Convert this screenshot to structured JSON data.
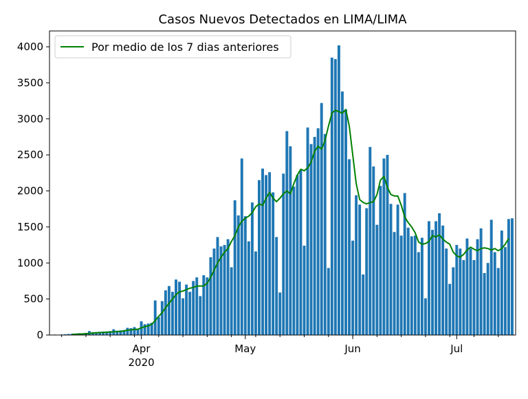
{
  "chart_data": {
    "type": "bar",
    "title": "Casos Nuevos Detectados en LIMA/LIMA",
    "xlabel": "",
    "ylabel": "",
    "x_start_date": "2020-03-06",
    "ylim": [
      0,
      4220
    ],
    "yticks": [
      0,
      500,
      1000,
      1500,
      2000,
      2500,
      3000,
      3500,
      4000
    ],
    "xticks": [
      {
        "date": "2020-04-01",
        "label": "Apr",
        "sublabel": "2020"
      },
      {
        "date": "2020-05-01",
        "label": "May",
        "sublabel": ""
      },
      {
        "date": "2020-06-01",
        "label": "Jun",
        "sublabel": ""
      },
      {
        "date": "2020-07-01",
        "label": "Jul",
        "sublabel": ""
      }
    ],
    "grid": false,
    "legend_position": "top-left",
    "bar_color": "#1f77b4",
    "line_color": "#008000",
    "series": [
      {
        "kind": "bar",
        "values": [
          4,
          6,
          3,
          8,
          10,
          15,
          18,
          20,
          25,
          22,
          30,
          55,
          40,
          42,
          45,
          48,
          50,
          55,
          80,
          60,
          65,
          70,
          100,
          95,
          110,
          90,
          190,
          150,
          160,
          170,
          480,
          250,
          470,
          620,
          680,
          600,
          770,
          740,
          510,
          700,
          600,
          750,
          800,
          540,
          830,
          800,
          1080,
          1200,
          1360,
          1230,
          1250,
          1330,
          940,
          1870,
          1660,
          2450,
          1650,
          1300,
          1840,
          1160,
          2150,
          2310,
          2220,
          2260,
          1980,
          1360,
          590,
          2240,
          2830,
          2620,
          2060,
          2220,
          2290,
          1240,
          2880,
          2650,
          2750,
          2870,
          3220,
          2790,
          930,
          3850,
          3830,
          4020,
          3380,
          3130,
          2440,
          1310,
          1940,
          1810,
          840,
          1760,
          2610,
          2340,
          1530,
          2070,
          2450,
          2500,
          1820,
          1430,
          1810,
          1380,
          1970,
          1490,
          1370,
          1380,
          1150,
          1350,
          510,
          1580,
          1460,
          1580,
          1690,
          1520,
          1200,
          710,
          940,
          1250,
          1200,
          1040,
          1340,
          1200,
          1040,
          1330,
          1480,
          860,
          1000,
          1600,
          1150,
          930,
          1450,
          1220,
          1610,
          1620
        ]
      },
      {
        "kind": "line",
        "name": "Por medio de los 7 dias anteriores",
        "values": [
          null,
          null,
          null,
          null,
          null,
          null,
          9,
          11,
          13,
          15,
          18,
          22,
          28,
          30,
          33,
          36,
          38,
          42,
          44,
          48,
          50,
          56,
          68,
          72,
          78,
          80,
          100,
          118,
          125,
          150,
          200,
          260,
          310,
          380,
          440,
          500,
          560,
          600,
          610,
          630,
          650,
          660,
          680,
          680,
          680,
          720,
          800,
          900,
          1000,
          1080,
          1150,
          1200,
          1300,
          1380,
          1500,
          1580,
          1620,
          1650,
          1700,
          1780,
          1820,
          1800,
          1900,
          1980,
          1900,
          1850,
          1900,
          1960,
          2000,
          1960,
          2100,
          2220,
          2300,
          2280,
          2320,
          2400,
          2550,
          2620,
          2580,
          2700,
          2900,
          3080,
          3120,
          3100,
          3080,
          3130,
          2900,
          2500,
          2100,
          1880,
          1840,
          1820,
          1840,
          1850,
          1950,
          2150,
          2200,
          2050,
          1950,
          1930,
          1930,
          1800,
          1640,
          1560,
          1500,
          1420,
          1290,
          1260,
          1270,
          1300,
          1380,
          1360,
          1390,
          1330,
          1290,
          1260,
          1150,
          1100,
          1080,
          1120,
          1180,
          1220,
          1190,
          1170,
          1200,
          1210,
          1200,
          1180,
          1200,
          1170,
          1200,
          1260,
          1340
        ]
      }
    ]
  }
}
